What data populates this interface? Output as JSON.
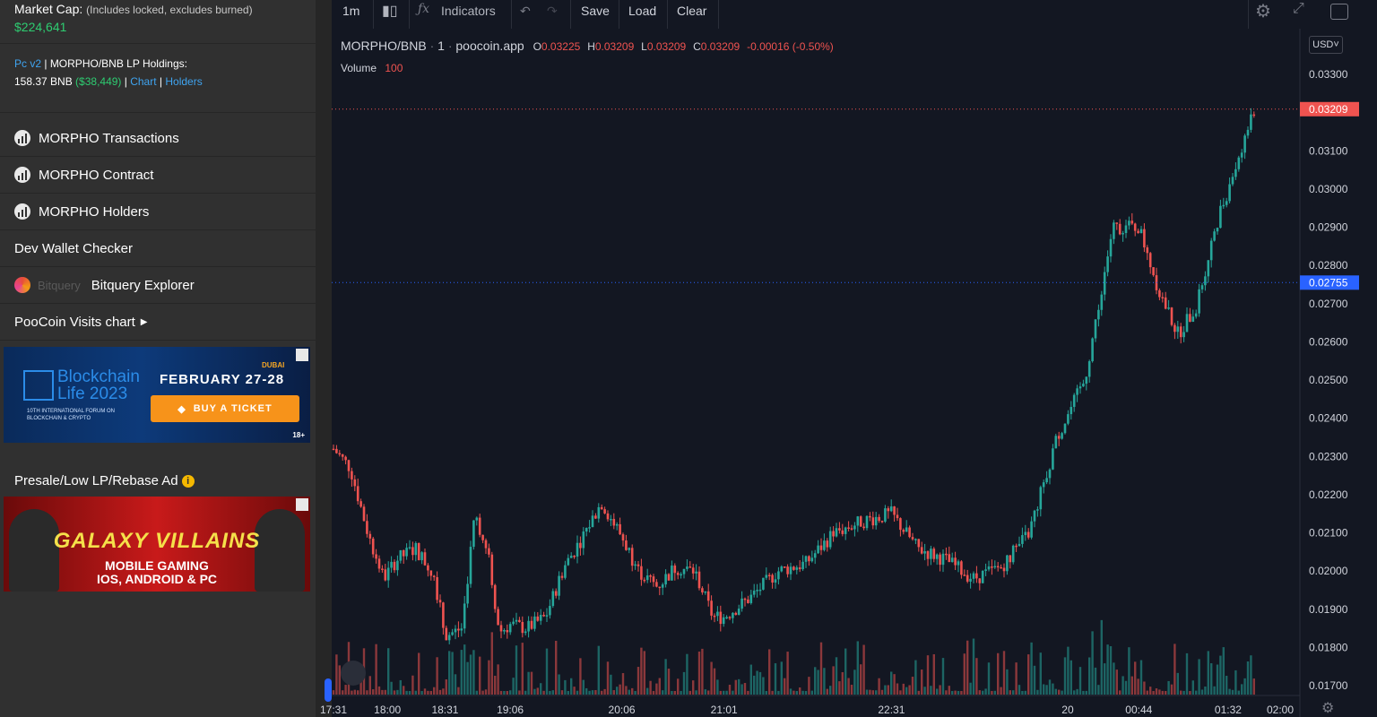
{
  "sidebar": {
    "market_cap_label": "Market Cap:",
    "market_cap_note": "(Includes locked, excludes burned)",
    "market_cap_value": "$224,641",
    "lp_version": "Pc v2",
    "lp_sep1": " | ",
    "lp_label": "MORPHO/BNB LP Holdings:",
    "lp_bnb": "158.37 BNB ",
    "lp_usd": "($38,449)",
    "lp_sep2": " | ",
    "lp_chart": "Chart",
    "lp_sep3": " | ",
    "lp_holders": "Holders",
    "items": [
      {
        "label": "MORPHO Transactions",
        "icon": "chart-icon"
      },
      {
        "label": "MORPHO Contract",
        "icon": "chart-icon"
      },
      {
        "label": "MORPHO Holders",
        "icon": "chart-icon"
      }
    ],
    "dev_wallet": "Dev Wallet Checker",
    "bitquery_logo_text": "Bitquery",
    "bitquery_label": "Bitquery Explorer",
    "visits_label": "PooCoin Visits chart",
    "presale_label": "Presale/Low LP/Rebase Ad",
    "presale_info": "i"
  },
  "ad1": {
    "brand": "Blockchain Life 2023",
    "sub": "10TH INTERNATIONAL FORUM ON BLOCKCHAIN & CRYPTO",
    "city": "DUBAI",
    "date": "FEBRUARY 27-28",
    "button": "BUY A TICKET",
    "age": "18+"
  },
  "ad2": {
    "title": "GALAXY VILLAINS",
    "line1": "MOBILE GAMING",
    "line2": "IOS, ANDROID & PC"
  },
  "toolbar": {
    "interval": "1m",
    "indicators": "Indicators",
    "save": "Save",
    "load": "Load",
    "clear": "Clear",
    "currency": "USD"
  },
  "legend": {
    "pair": "MORPHO/BNB",
    "interval": "1",
    "source": "poocoin.app",
    "o_label": "O",
    "o": "0.03225",
    "h_label": "H",
    "h": "0.03209",
    "l_label": "L",
    "l": "0.03209",
    "c_label": "C",
    "c": "0.03209",
    "change": "-0.00016 (-0.50%)",
    "volume_label": "Volume",
    "volume": "100"
  },
  "colors": {
    "up": "#26a69a",
    "down": "#ef5350",
    "background": "#131722",
    "last_price_tag": "#ef5350",
    "crosshair_tag": "#2962ff"
  },
  "chart_data": {
    "type": "candlestick",
    "price_axis": {
      "ticks": [
        "0.03300",
        "0.03100",
        "0.03000",
        "0.02900",
        "0.02800",
        "0.02700",
        "0.02600",
        "0.02500",
        "0.02400",
        "0.02300",
        "0.02200",
        "0.02100",
        "0.02000",
        "0.01900",
        "0.01800",
        "0.01700"
      ],
      "last_price": "0.03209",
      "crosshair_price": "0.02755"
    },
    "time_axis": {
      "ticks": [
        "17:31",
        "18:00",
        "18:31",
        "19:06",
        "20:06",
        "21:01",
        "22:31",
        "20",
        "00:44",
        "01:32",
        "02:00"
      ]
    },
    "close_path": [
      [
        "17:31",
        0.0232
      ],
      [
        "17:40",
        0.0227
      ],
      [
        "17:50",
        0.0209
      ],
      [
        "17:58",
        0.0198
      ],
      [
        "18:05",
        0.0203
      ],
      [
        "18:15",
        0.0206
      ],
      [
        "18:25",
        0.0199
      ],
      [
        "18:31",
        0.0183
      ],
      [
        "18:40",
        0.0185
      ],
      [
        "18:47",
        0.0215
      ],
      [
        "18:55",
        0.0202
      ],
      [
        "19:00",
        0.0184
      ],
      [
        "19:06",
        0.0186
      ],
      [
        "19:15",
        0.0185
      ],
      [
        "19:25",
        0.0188
      ],
      [
        "19:35",
        0.0201
      ],
      [
        "19:45",
        0.0209
      ],
      [
        "19:55",
        0.0218
      ],
      [
        "20:06",
        0.0209
      ],
      [
        "20:15",
        0.02
      ],
      [
        "20:25",
        0.0196
      ],
      [
        "20:35",
        0.0201
      ],
      [
        "20:45",
        0.02
      ],
      [
        "20:55",
        0.0188
      ],
      [
        "21:01",
        0.0188
      ],
      [
        "21:15",
        0.0193
      ],
      [
        "21:30",
        0.02
      ],
      [
        "21:45",
        0.0202
      ],
      [
        "22:00",
        0.021
      ],
      [
        "22:15",
        0.0213
      ],
      [
        "22:31",
        0.0215
      ],
      [
        "22:45",
        0.0206
      ],
      [
        "23:00",
        0.0203
      ],
      [
        "23:15",
        0.0198
      ],
      [
        "23:30",
        0.0201
      ],
      [
        "23:45",
        0.021
      ],
      [
        "00:00",
        0.0235
      ],
      [
        "00:15",
        0.025
      ],
      [
        "00:30",
        0.029
      ],
      [
        "00:44",
        0.029
      ],
      [
        "00:55",
        0.0273
      ],
      [
        "01:05",
        0.0262
      ],
      [
        "01:15",
        0.0269
      ],
      [
        "01:25",
        0.029
      ],
      [
        "01:32",
        0.03
      ],
      [
        "01:42",
        0.0315
      ],
      [
        "01:50",
        0.0324
      ],
      [
        "02:00",
        0.0321
      ]
    ]
  }
}
